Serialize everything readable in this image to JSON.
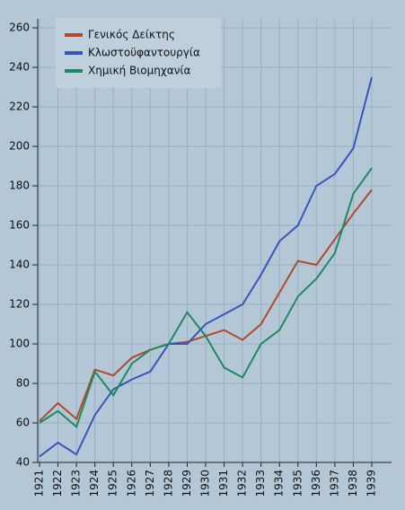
{
  "chart_data": {
    "type": "line",
    "categories": [
      "1921",
      "1922",
      "1923",
      "1924",
      "1925",
      "1926",
      "1927",
      "1928",
      "1929",
      "1930",
      "1931",
      "1932",
      "1933",
      "1934",
      "1935",
      "1936",
      "1937",
      "1938",
      "1939"
    ],
    "series": [
      {
        "name": "Γενικός Δείκτης",
        "color": "#b5472b",
        "values": [
          61,
          70,
          62,
          87,
          84,
          93,
          97,
          100,
          101,
          104,
          107,
          102,
          110,
          126,
          142,
          140,
          153,
          166,
          178
        ]
      },
      {
        "name": "Κλωστοϋφαντουργία",
        "color": "#3456bd",
        "values": [
          43,
          50,
          44,
          64,
          77,
          82,
          86,
          100,
          100,
          110,
          115,
          120,
          135,
          152,
          160,
          180,
          186,
          199,
          235
        ]
      },
      {
        "name": "Χημική Βιομηχανία",
        "color": "#1e8a5c",
        "values": [
          60,
          66,
          58,
          86,
          74,
          90,
          97,
          100,
          116,
          104,
          88,
          83,
          100,
          107,
          124,
          133,
          146,
          176,
          189
        ]
      }
    ],
    "ylim": [
      40,
      260
    ],
    "yticks": [
      40,
      60,
      80,
      100,
      120,
      140,
      160,
      180,
      200,
      220,
      240,
      260
    ],
    "grid": true,
    "legend": "upper left"
  }
}
